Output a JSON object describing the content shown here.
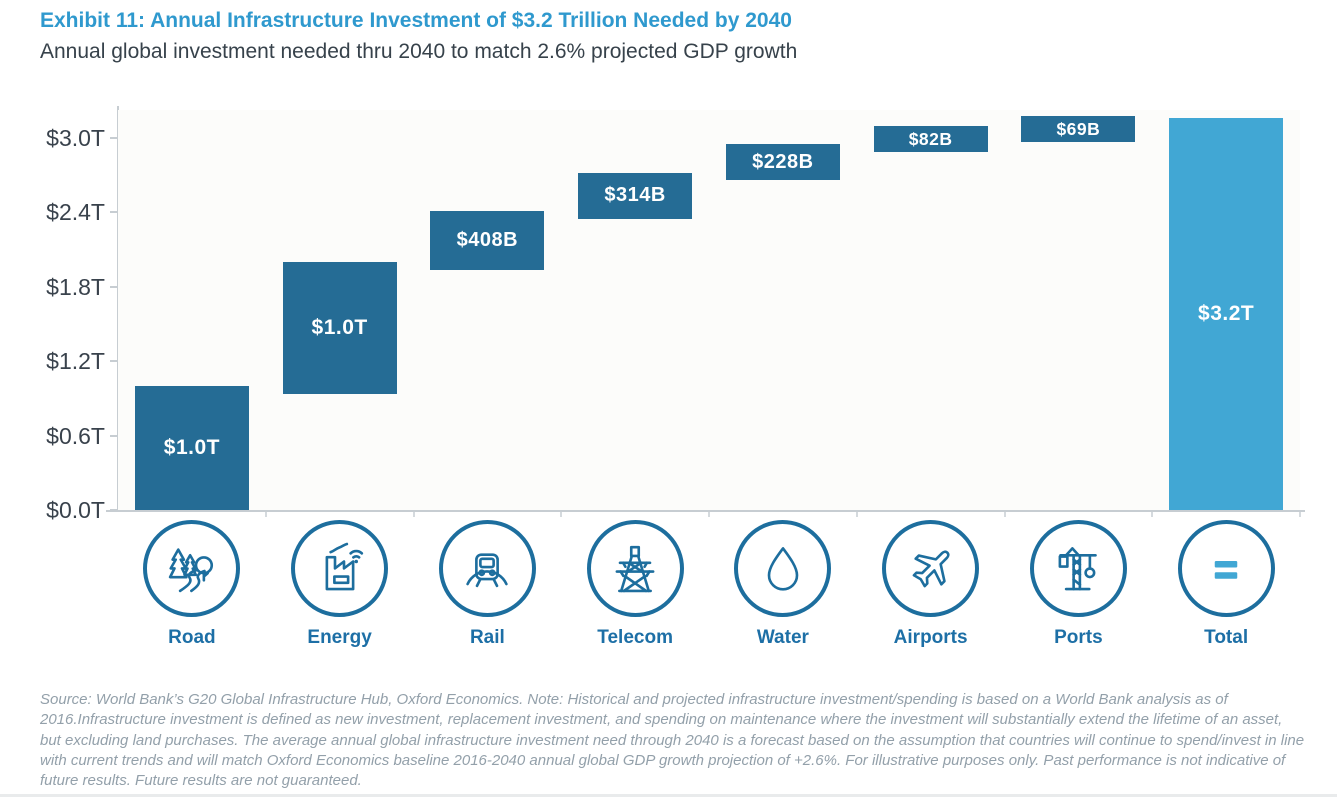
{
  "header": {
    "title": "Exhibit 11: Annual Infrastructure Investment of $3.2 Trillion Needed by 2040",
    "subtitle": "Annual global investment needed thru 2040 to match 2.6% projected GDP growth"
  },
  "colors": {
    "title_blue": "#2F99CE",
    "bar_blue": "#256C95",
    "total_bar_blue": "#41A7D4",
    "bar_label_white": "#FFFFFF",
    "category_blue": "#1D6FA6",
    "icon_blue": "#1D6E9E",
    "axis_gray": "#C7CDD2",
    "tick_label_gray": "#39424C",
    "footer_gray": "#93A0AA"
  },
  "chart_data": {
    "type": "bar",
    "subtype": "waterfall",
    "title": "Exhibit 11: Annual Infrastructure Investment of $3.2 Trillion Needed by 2040",
    "subtitle": "Annual global investment needed thru 2040 to match 2.6% projected GDP growth",
    "categories": [
      "Road",
      "Energy",
      "Rail",
      "Telecom",
      "Water",
      "Airports",
      "Ports",
      "Total"
    ],
    "values_trillions": [
      1.0,
      1.0,
      0.408,
      0.314,
      0.228,
      0.082,
      0.069,
      3.2
    ],
    "bar_labels": [
      "$1.0T",
      "$1.0T",
      "$408B",
      "$314B",
      "$228B",
      "$82B",
      "$69B",
      "$3.2T"
    ],
    "is_total": [
      false,
      false,
      false,
      false,
      false,
      false,
      false,
      true
    ],
    "icons": [
      "road-icon",
      "energy-icon",
      "rail-icon",
      "telecom-icon",
      "water-icon",
      "airports-icon",
      "ports-icon",
      "total-icon"
    ],
    "xlabel": "",
    "ylabel": "",
    "ylim": [
      0,
      3.3
    ],
    "y_ticks": [
      {
        "label": "$0.0T",
        "value": 0.0
      },
      {
        "label": "$0.6T",
        "value": 0.6
      },
      {
        "label": "$1.2T",
        "value": 1.2
      },
      {
        "label": "$1.8T",
        "value": 1.8
      },
      {
        "label": "$2.4T",
        "value": 2.4
      },
      {
        "label": "$3.0T",
        "value": 3.0
      }
    ],
    "grid": false,
    "legend": false
  },
  "footer": {
    "source_note": "Source: World Bank’s G20 Global Infrastructure Hub, Oxford Economics. Note: Historical and projected infrastructure investment/spending is based on a World Bank analysis as of 2016.Infrastructure investment is defined as new investment, replacement investment, and spending on maintenance where the investment will substantially extend the lifetime of an asset, but excluding land purchases. The average annual global infrastructure investment need through 2040 is a forecast based on the assumption that countries will continue to spend/invest in line with current trends and will match Oxford Economics baseline 2016-2040 annual global GDP growth projection of +2.6%. For illustrative purposes only. Past performance is not indicative of future results. Future results are not guaranteed."
  }
}
